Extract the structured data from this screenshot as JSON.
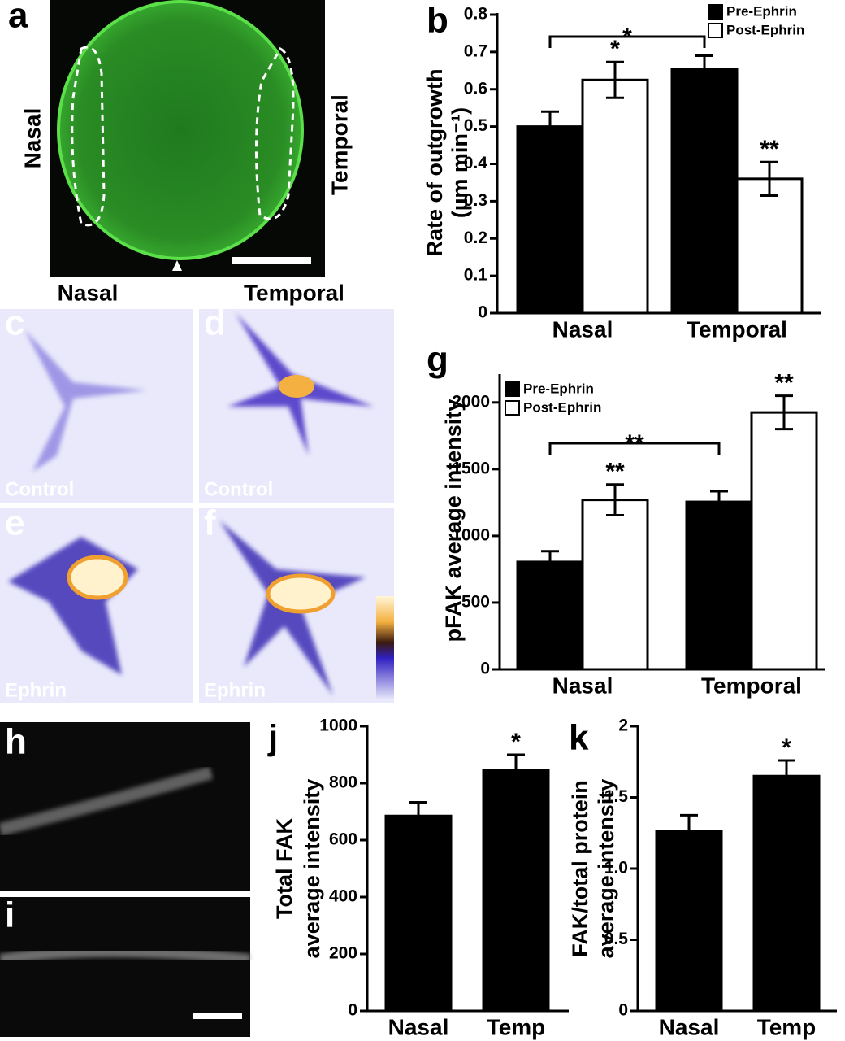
{
  "images": {
    "a": {
      "label": "a",
      "left": "Nasal",
      "right": "Temporal"
    },
    "columns": [
      "Nasal",
      "Temporal"
    ],
    "panels": [
      {
        "label": "c",
        "caption": "Control"
      },
      {
        "label": "d",
        "caption": "Control"
      },
      {
        "label": "e",
        "caption": "Ephrin"
      },
      {
        "label": "f",
        "caption": "Ephrin"
      }
    ],
    "h": {
      "label": "h"
    },
    "i": {
      "label": "i"
    }
  },
  "chart_data": [
    {
      "type": "bar",
      "panel": "b",
      "y_label": [
        "Rate of outgrowth",
        "(µm min⁻¹)"
      ],
      "categories": [
        "Nasal",
        "Temporal"
      ],
      "series": [
        {
          "name": "Pre-Ephrin",
          "color": "#000000",
          "values": [
            0.5,
            0.655
          ],
          "errors": [
            0.04,
            0.035
          ],
          "significance": [
            null,
            null
          ]
        },
        {
          "name": "Post-Ephrin",
          "color": "#ffffff",
          "values": [
            0.625,
            0.36
          ],
          "errors": [
            0.048,
            0.045
          ],
          "significance": [
            "*",
            "**"
          ]
        }
      ],
      "bracket": "*",
      "ylim": [
        0,
        0.8
      ],
      "yticks": [
        0,
        0.1,
        0.2,
        0.3,
        0.4,
        0.5,
        0.6,
        0.7,
        0.8
      ],
      "grid": false,
      "legend": "top-right"
    },
    {
      "type": "bar",
      "panel": "g",
      "y_label": [
        "pFAK average intensity"
      ],
      "categories": [
        "Nasal",
        "Temporal"
      ],
      "series": [
        {
          "name": "Pre-Ephrin",
          "color": "#000000",
          "values": [
            805,
            1255
          ],
          "errors": [
            80,
            80
          ],
          "significance": [
            null,
            null
          ]
        },
        {
          "name": "Post-Ephrin",
          "color": "#ffffff",
          "values": [
            1270,
            1925
          ],
          "errors": [
            115,
            125
          ],
          "significance": [
            "**",
            "**"
          ]
        }
      ],
      "bracket": "**",
      "ylim": [
        0,
        2200
      ],
      "yticks": [
        0,
        500,
        1000,
        1500,
        2000
      ],
      "grid": false,
      "legend": "top-left"
    },
    {
      "type": "bar",
      "panel": "j",
      "y_label": [
        "Total FAK",
        "average intensity"
      ],
      "categories": [
        "Nasal",
        "Temp"
      ],
      "values": [
        685,
        845
      ],
      "errors": [
        48,
        55
      ],
      "significance": [
        null,
        "*"
      ],
      "color": "#000000",
      "ylim": [
        0,
        1000
      ],
      "yticks": [
        0,
        200,
        400,
        600,
        800,
        1000
      ],
      "grid": false
    },
    {
      "type": "bar",
      "panel": "k",
      "y_label": [
        "FAK/total protein",
        "average intensity"
      ],
      "categories": [
        "Nasal",
        "Temp"
      ],
      "values": [
        1.265,
        1.65
      ],
      "errors": [
        0.11,
        0.11
      ],
      "significance": [
        null,
        "*"
      ],
      "color": "#000000",
      "ylim": [
        0,
        2
      ],
      "yticks": [
        0,
        0.5,
        {
          "value": 1,
          "label": "1.0"
        },
        1.5,
        2
      ],
      "grid": false
    }
  ]
}
